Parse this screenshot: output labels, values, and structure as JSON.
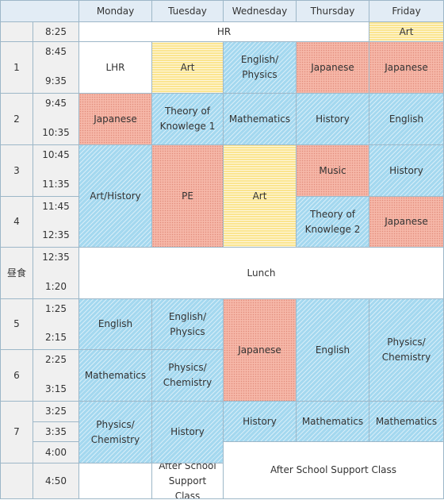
{
  "headers": {
    "days": [
      "Monday",
      "Tuesday",
      "Wednesday",
      "Thursday",
      "Friday"
    ]
  },
  "periods": {
    "p1": "1",
    "p2": "2",
    "p3": "3",
    "p4": "4",
    "lunch": "昼食",
    "p5": "5",
    "p6": "6",
    "p7": "7"
  },
  "times": {
    "t825": "8:25",
    "t845": "8:45",
    "t935a": "9:35",
    "t945": "9:45",
    "t1035": "10:35",
    "t1045": "10:45",
    "t1135": "11:35",
    "t1145": "11:45",
    "t1235a": "12:35",
    "t1235b": "12:35",
    "t120": "1:20",
    "t125": "1:25",
    "t215": "2:15",
    "t225": "2:25",
    "t315": "3:15",
    "t325": "3:25",
    "t335": "3:35",
    "t400": "4:00",
    "t450": "4:50"
  },
  "cells": {
    "hr": "HR",
    "fri_hr_art": "Art",
    "mon_p1": "LHR",
    "tue_p1": "Art",
    "wed_p1": "English/ Physics",
    "thu_p1": "Japanese",
    "fri_p1": "Japanese",
    "mon_p2": "Japanese",
    "tue_p2": "Theory of Knowlege 1",
    "wed_p2": "Mathematics",
    "thu_p2": "History",
    "fri_p2": "English",
    "mon_p34": "Art/History",
    "tue_p34": "PE",
    "wed_p34": "Art",
    "thu_p3": "Music",
    "fri_p3": "History",
    "thu_p4": "Theory of Knowlege 2",
    "fri_p4": "Japanese",
    "lunch": "Lunch",
    "mon_p5": "English",
    "tue_p5": "English/ Physics",
    "wed_p56": "Japanese",
    "thu_p56": "English",
    "fri_p56": "Physics/ Chemistry",
    "mon_p6": "Mathematics",
    "tue_p6": "Physics/ Chemistry",
    "mon_p7": "Physics/ Chemistry",
    "tue_p7": "History",
    "wed_p7": "History",
    "thu_p7": "Mathematics",
    "fri_p7": "Mathematics",
    "tue_after": "After School Support Class",
    "wedfri_after": "After School Support Class"
  },
  "colors": {
    "blue": "#a4d8ef",
    "pink": "#f6b7a8",
    "yellow": "#fbe590",
    "header": "#e2ecf5",
    "grid": "#9db7c8"
  }
}
